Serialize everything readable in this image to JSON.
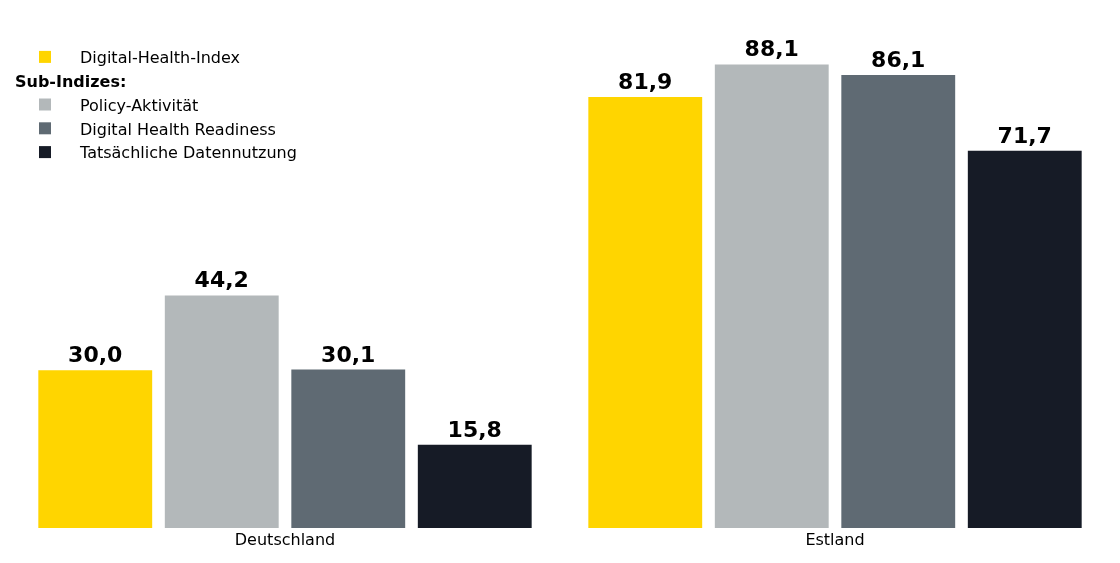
{
  "chart_data": {
    "type": "bar",
    "categories": [
      "Deutschland",
      "Estland"
    ],
    "legend_title": "Sub-Indizes:",
    "series": [
      {
        "name": "Digital-Health-Index",
        "color": "#ffd500",
        "values": [
          30.0,
          81.9
        ],
        "value_labels": [
          "30,0",
          "81,9"
        ]
      },
      {
        "name": "Policy-Aktivität",
        "color": "#b3b8ba",
        "values": [
          44.2,
          88.1
        ],
        "value_labels": [
          "44,2",
          "88,1"
        ]
      },
      {
        "name": "Digital Health Readiness",
        "color": "#5f6a73",
        "values": [
          30.1,
          86.1
        ],
        "value_labels": [
          "30,1",
          "86,1"
        ]
      },
      {
        "name": "Tatsächliche Datennutzung",
        "color": "#161b26",
        "values": [
          15.8,
          71.7
        ],
        "value_labels": [
          "15,8",
          "71,7"
        ]
      }
    ],
    "legend": "top left"
  }
}
